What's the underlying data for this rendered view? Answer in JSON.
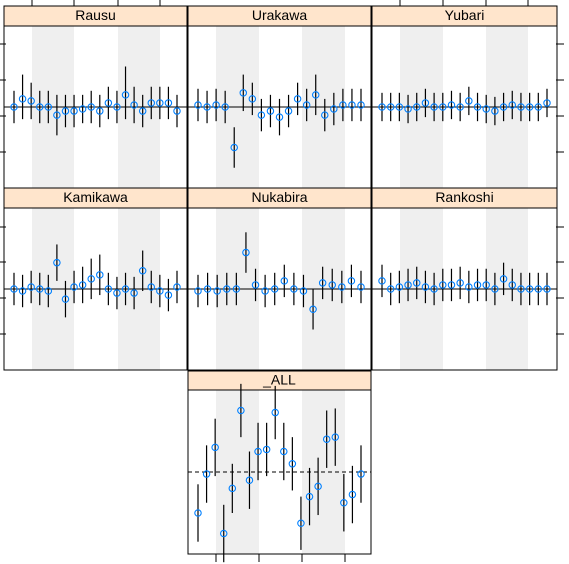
{
  "colors": {
    "strip": "#ffe5cc",
    "band": "#efefef",
    "point": "#0080ff",
    "errorbar": "#000000",
    "frame": "#000000",
    "refline": "#000000"
  },
  "chart_data": {
    "type": "scatter",
    "title": "",
    "xlabel": "",
    "ylabel": "",
    "grid": false,
    "legend": "none",
    "panel_order": [
      "Rausu",
      "Urakawa",
      "Yubari",
      "Kamikawa",
      "Nukabira",
      "Rankoshi",
      "_ALL"
    ],
    "panels": [
      {
        "name": "Rausu",
        "ylim": [
          -2,
          2
        ],
        "y": [
          0.0,
          0.2,
          0.15,
          0.0,
          0.0,
          -0.2,
          -0.1,
          -0.1,
          -0.05,
          0.0,
          -0.1,
          0.1,
          0.0,
          0.3,
          0.05,
          -0.1,
          0.1,
          0.1,
          0.1,
          -0.1
        ],
        "lower": [
          -0.4,
          -0.3,
          -0.3,
          -0.4,
          -0.4,
          -0.7,
          -0.5,
          -0.5,
          -0.4,
          -0.4,
          -0.5,
          -0.3,
          -0.4,
          -0.3,
          -0.4,
          -0.5,
          -0.3,
          -0.3,
          -0.3,
          -0.5
        ],
        "upper": [
          0.4,
          0.8,
          0.6,
          0.4,
          0.4,
          0.3,
          0.3,
          0.3,
          0.3,
          0.4,
          0.3,
          0.5,
          0.4,
          1.0,
          0.5,
          0.3,
          0.5,
          0.5,
          0.5,
          0.3
        ]
      },
      {
        "name": "Urakawa",
        "ylim": [
          -2,
          2
        ],
        "y": [
          0.05,
          0.0,
          0.05,
          0.0,
          -1.0,
          0.35,
          0.2,
          -0.2,
          -0.1,
          -0.25,
          -0.1,
          0.2,
          0.05,
          0.3,
          -0.2,
          -0.05,
          0.05,
          0.05,
          0.05
        ],
        "lower": [
          -0.35,
          -0.4,
          -0.35,
          -0.4,
          -1.5,
          -0.1,
          -0.2,
          -0.6,
          -0.5,
          -0.7,
          -0.5,
          -0.2,
          -0.35,
          -0.2,
          -0.6,
          -0.45,
          -0.35,
          -0.35,
          -0.35
        ],
        "upper": [
          0.45,
          0.4,
          0.45,
          0.4,
          -0.5,
          0.8,
          0.6,
          0.2,
          0.3,
          0.2,
          0.3,
          0.6,
          0.45,
          0.8,
          0.2,
          0.35,
          0.45,
          0.45,
          0.45
        ]
      },
      {
        "name": "Yubari",
        "ylim": [
          -2,
          2
        ],
        "y": [
          0.0,
          0.0,
          0.0,
          -0.05,
          0.0,
          0.1,
          0.0,
          0.0,
          0.05,
          0.0,
          0.15,
          0.0,
          -0.05,
          -0.1,
          0.0,
          0.05,
          0.0,
          0.0,
          0.0,
          0.1
        ],
        "lower": [
          -0.35,
          -0.35,
          -0.35,
          -0.4,
          -0.35,
          -0.25,
          -0.35,
          -0.35,
          -0.3,
          -0.35,
          -0.2,
          -0.35,
          -0.4,
          -0.45,
          -0.35,
          -0.3,
          -0.35,
          -0.35,
          -0.35,
          -0.25
        ],
        "upper": [
          0.35,
          0.35,
          0.35,
          0.3,
          0.35,
          0.45,
          0.35,
          0.35,
          0.4,
          0.35,
          0.5,
          0.35,
          0.3,
          0.25,
          0.35,
          0.4,
          0.35,
          0.35,
          0.35,
          0.45
        ]
      },
      {
        "name": "Kamikawa",
        "ylim": [
          -2,
          2
        ],
        "y": [
          0.0,
          -0.05,
          0.05,
          0.0,
          -0.05,
          0.65,
          -0.25,
          0.05,
          0.1,
          0.25,
          0.35,
          0.0,
          -0.1,
          0.0,
          -0.1,
          0.45,
          0.05,
          -0.05,
          -0.15,
          0.05
        ],
        "lower": [
          -0.4,
          -0.45,
          -0.35,
          -0.4,
          -0.45,
          0.2,
          -0.7,
          -0.35,
          -0.35,
          -0.25,
          -0.15,
          -0.4,
          -0.5,
          -0.4,
          -0.5,
          -0.05,
          -0.35,
          -0.45,
          -0.55,
          -0.35
        ],
        "upper": [
          0.4,
          0.35,
          0.45,
          0.4,
          0.35,
          1.1,
          0.2,
          0.45,
          0.55,
          0.75,
          0.85,
          0.4,
          0.3,
          0.4,
          0.3,
          0.95,
          0.45,
          0.35,
          0.25,
          0.45
        ]
      },
      {
        "name": "Nukabira",
        "ylim": [
          -2,
          2
        ],
        "y": [
          -0.05,
          0.0,
          -0.05,
          0.0,
          0.0,
          0.9,
          0.1,
          -0.05,
          0.0,
          0.2,
          0.0,
          -0.05,
          -0.5,
          0.15,
          0.1,
          0.05,
          0.2,
          0.05
        ],
        "lower": [
          -0.45,
          -0.4,
          -0.45,
          -0.4,
          -0.4,
          0.4,
          -0.3,
          -0.45,
          -0.4,
          -0.2,
          -0.4,
          -0.45,
          -1.0,
          -0.25,
          -0.3,
          -0.35,
          -0.2,
          -0.35
        ],
        "upper": [
          0.35,
          0.4,
          0.35,
          0.4,
          0.4,
          1.4,
          0.5,
          0.35,
          0.4,
          0.6,
          0.4,
          0.35,
          0.0,
          0.55,
          0.5,
          0.45,
          0.6,
          0.45
        ]
      },
      {
        "name": "Rankoshi",
        "ylim": [
          -2,
          2
        ],
        "y": [
          0.2,
          0.0,
          0.05,
          0.1,
          0.15,
          0.05,
          0.0,
          0.1,
          0.1,
          0.15,
          0.05,
          0.1,
          0.1,
          0.0,
          0.25,
          0.1,
          0.0,
          0.0,
          0.0,
          0.0
        ],
        "lower": [
          -0.2,
          -0.4,
          -0.35,
          -0.3,
          -0.25,
          -0.35,
          -0.4,
          -0.3,
          -0.3,
          -0.25,
          -0.35,
          -0.3,
          -0.3,
          -0.4,
          -0.15,
          -0.3,
          -0.4,
          -0.4,
          -0.4,
          -0.4
        ],
        "upper": [
          0.6,
          0.4,
          0.45,
          0.5,
          0.55,
          0.45,
          0.4,
          0.5,
          0.5,
          0.55,
          0.45,
          0.5,
          0.5,
          0.4,
          0.65,
          0.5,
          0.4,
          0.4,
          0.4,
          0.4
        ]
      },
      {
        "name": "_ALL",
        "ylim": [
          -2,
          2
        ],
        "y": [
          -1.0,
          -0.05,
          0.6,
          -1.5,
          -0.4,
          1.5,
          -0.2,
          0.5,
          0.55,
          1.45,
          0.5,
          0.2,
          -1.25,
          -0.6,
          -0.35,
          0.8,
          0.85,
          -0.75,
          -0.55,
          -0.05
        ],
        "lower": [
          -1.7,
          -0.75,
          -0.1,
          -2.2,
          -1.0,
          0.85,
          -0.9,
          -0.2,
          -0.1,
          0.8,
          -0.2,
          -0.45,
          -1.9,
          -1.3,
          -1.05,
          0.1,
          0.15,
          -1.45,
          -1.25,
          -0.75
        ],
        "upper": [
          -0.3,
          0.65,
          1.3,
          -0.8,
          0.2,
          2.15,
          0.5,
          1.2,
          1.2,
          2.1,
          1.2,
          0.85,
          -0.6,
          0.1,
          0.35,
          1.5,
          1.55,
          -0.05,
          0.15,
          0.65
        ]
      }
    ]
  }
}
